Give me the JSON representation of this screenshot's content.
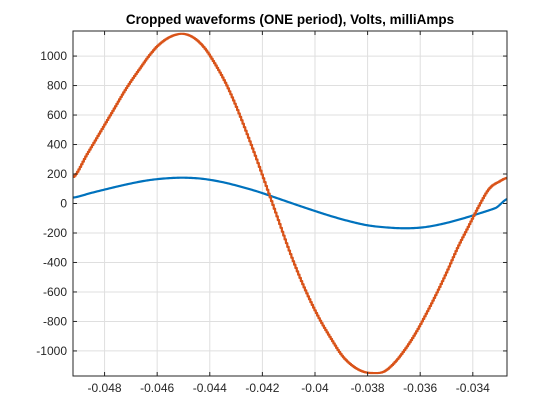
{
  "chart_data": {
    "type": "line",
    "title": "Cropped waveforms (ONE period), Volts, milliAmps",
    "xlabel": "",
    "ylabel": "",
    "xlim": [
      -0.0492,
      -0.0327
    ],
    "ylim": [
      -1170,
      1170
    ],
    "grid": true,
    "legend": "none",
    "xticks": [
      -0.048,
      -0.046,
      -0.044,
      -0.042,
      -0.04,
      -0.038,
      -0.036,
      -0.034
    ],
    "xtick_labels": [
      "-0.048",
      "-0.046",
      "-0.044",
      "-0.042",
      "-0.04",
      "-0.038",
      "-0.036",
      "-0.034"
    ],
    "yticks": [
      -1000,
      -800,
      -600,
      -400,
      -200,
      0,
      200,
      400,
      600,
      800,
      1000
    ],
    "ytick_labels": [
      "-1000",
      "-800",
      "-600",
      "-400",
      "-200",
      "0",
      "200",
      "400",
      "600",
      "800",
      "1000"
    ],
    "series": [
      {
        "color": "#0072BD",
        "x": [
          -0.0492,
          -0.0485,
          -0.0478,
          -0.0471,
          -0.0464,
          -0.0457,
          -0.045,
          -0.0443,
          -0.0436,
          -0.0429,
          -0.0422,
          -0.0415,
          -0.0408,
          -0.0401,
          -0.0394,
          -0.0387,
          -0.038,
          -0.0373,
          -0.0366,
          -0.0359,
          -0.0352,
          -0.0345,
          -0.0338,
          -0.0331,
          -0.0327
        ],
        "y": [
          40,
          72,
          103,
          132,
          156,
          170,
          175,
          168,
          148,
          118,
          82,
          40,
          -3,
          -45,
          -85,
          -120,
          -148,
          -162,
          -168,
          -162,
          -140,
          -108,
          -70,
          -28,
          30
        ]
      },
      {
        "color": "#D95319",
        "x": [
          -0.0492,
          -0.0487,
          -0.0482,
          -0.0477,
          -0.0472,
          -0.0467,
          -0.0462,
          -0.0458,
          -0.0454,
          -0.045,
          -0.0446,
          -0.0442,
          -0.0438,
          -0.0434,
          -0.043,
          -0.0426,
          -0.0422,
          -0.0418,
          -0.0414,
          -0.041,
          -0.0406,
          -0.0402,
          -0.0398,
          -0.0394,
          -0.039,
          -0.0386,
          -0.0382,
          -0.0378,
          -0.0374,
          -0.037,
          -0.0366,
          -0.0362,
          -0.0358,
          -0.0354,
          -0.035,
          -0.0346,
          -0.0342,
          -0.0338,
          -0.0334,
          -0.033,
          -0.0327
        ],
        "y": [
          180,
          330,
          480,
          630,
          780,
          910,
          1030,
          1100,
          1140,
          1150,
          1120,
          1050,
          940,
          810,
          650,
          470,
          280,
          80,
          -120,
          -320,
          -500,
          -660,
          -800,
          -920,
          -1030,
          -1100,
          -1140,
          -1150,
          -1140,
          -1080,
          -990,
          -880,
          -750,
          -610,
          -460,
          -300,
          -160,
          -20,
          100,
          150,
          175
        ]
      }
    ]
  }
}
